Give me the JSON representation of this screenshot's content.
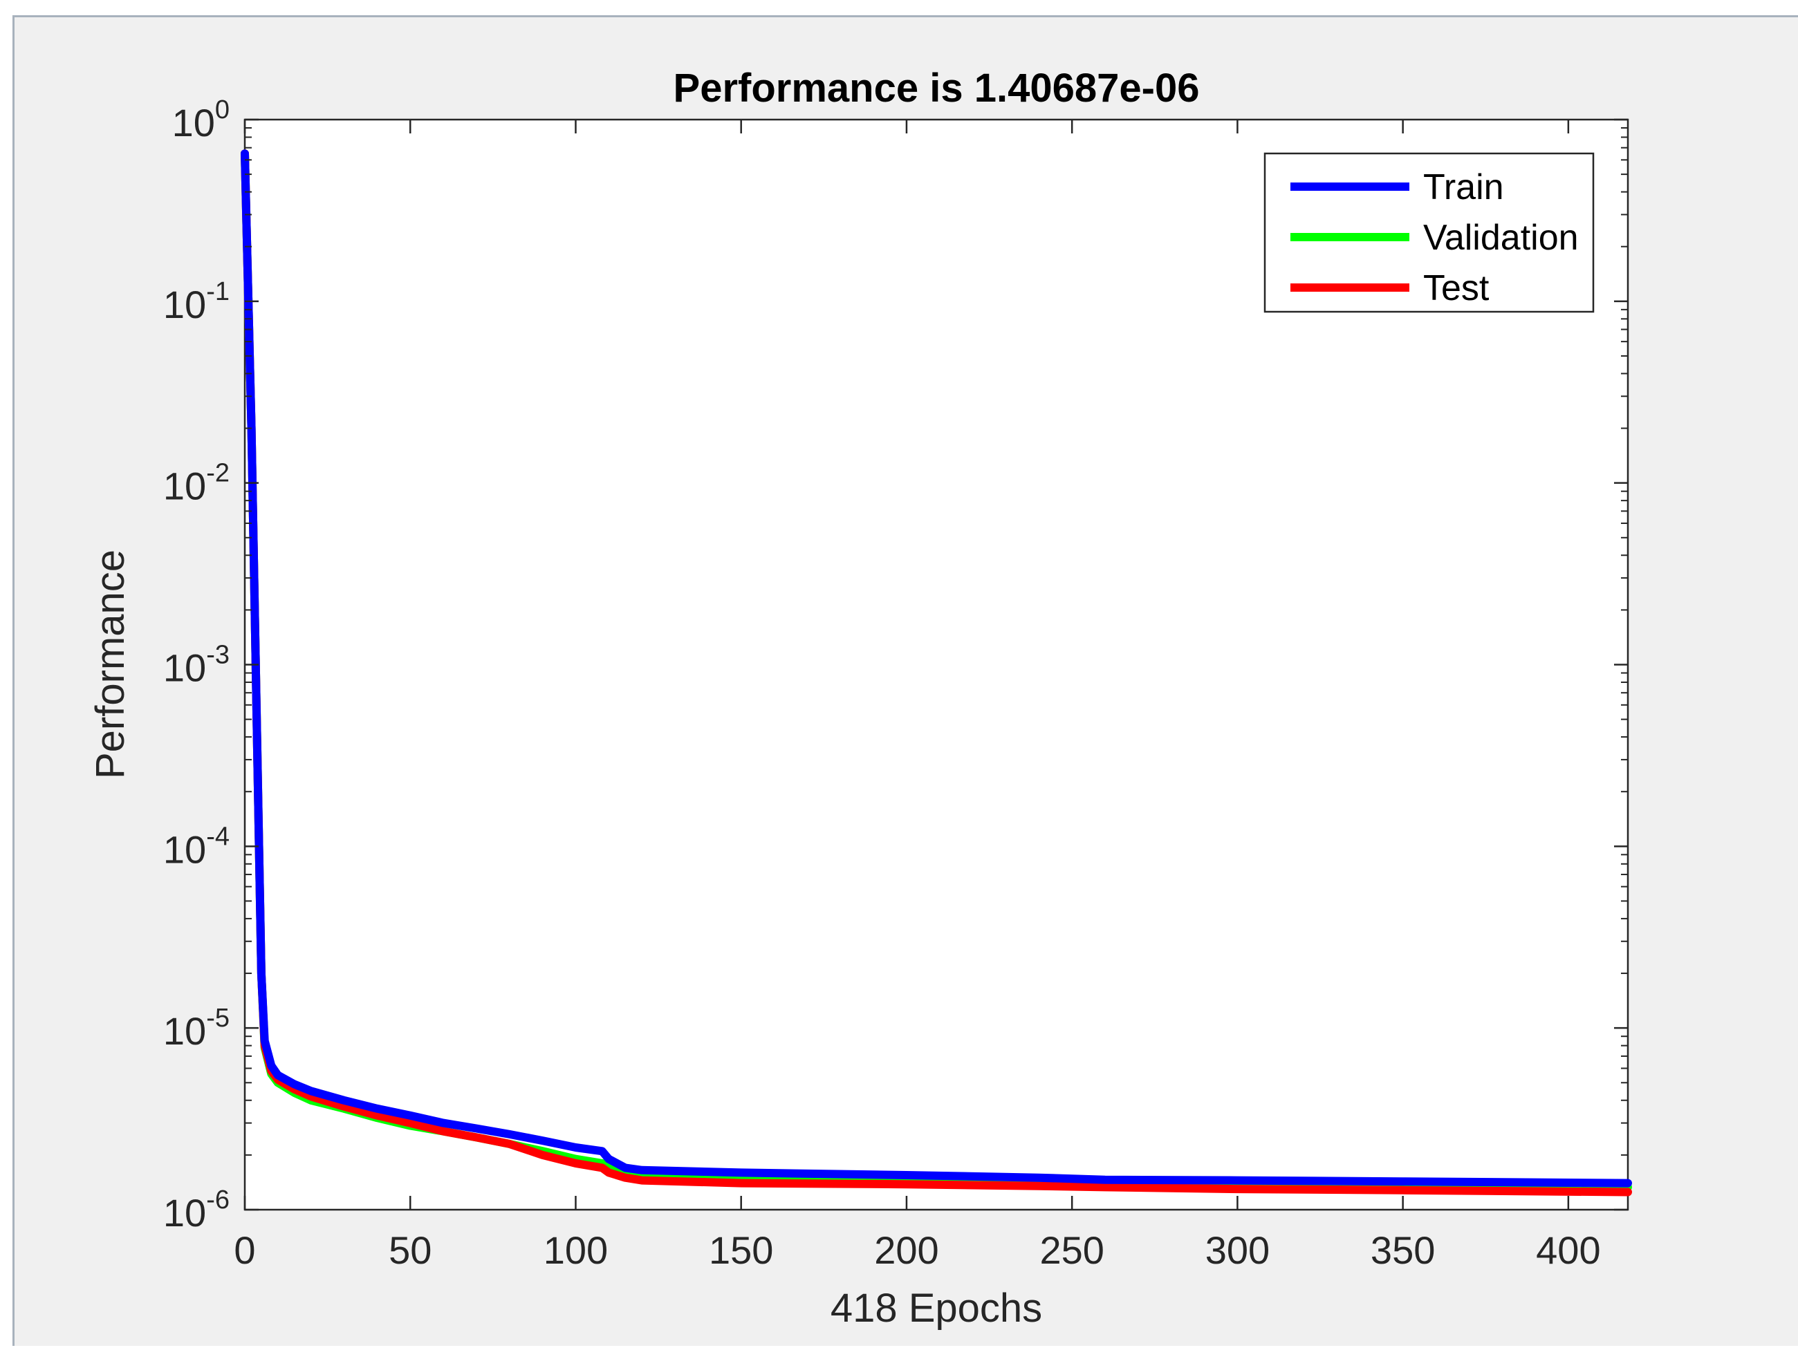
{
  "chart_data": {
    "type": "line",
    "title": "Performance is 1.40687e-06",
    "xlabel": "418 Epochs",
    "ylabel": "Performance",
    "xlim": [
      0,
      418
    ],
    "ylim": [
      1e-06,
      1
    ],
    "yscale": "log",
    "grid": false,
    "legend_position": "top-right",
    "x_ticks": [
      0,
      50,
      100,
      150,
      200,
      250,
      300,
      350,
      400
    ],
    "y_ticks": [
      {
        "base": "10",
        "exp": "0",
        "value": 1
      },
      {
        "base": "10",
        "exp": "-1",
        "value": 0.1
      },
      {
        "base": "10",
        "exp": "-2",
        "value": 0.01
      },
      {
        "base": "10",
        "exp": "-3",
        "value": 0.001
      },
      {
        "base": "10",
        "exp": "-4",
        "value": 0.0001
      },
      {
        "base": "10",
        "exp": "-5",
        "value": 1e-05
      },
      {
        "base": "10",
        "exp": "-6",
        "value": 1e-06
      }
    ],
    "series": [
      {
        "name": "Train",
        "color": "#0000ff",
        "points": [
          [
            0,
            0.65
          ],
          [
            2,
            0.02
          ],
          [
            4,
            0.0002
          ],
          [
            5,
            2e-05
          ],
          [
            6,
            8.5e-06
          ],
          [
            8,
            6.2e-06
          ],
          [
            10,
            5.5e-06
          ],
          [
            15,
            4.9e-06
          ],
          [
            20,
            4.5e-06
          ],
          [
            30,
            4e-06
          ],
          [
            40,
            3.6e-06
          ],
          [
            50,
            3.3e-06
          ],
          [
            60,
            3e-06
          ],
          [
            70,
            2.8e-06
          ],
          [
            80,
            2.6e-06
          ],
          [
            90,
            2.4e-06
          ],
          [
            100,
            2.2e-06
          ],
          [
            108,
            2.1e-06
          ],
          [
            110,
            1.9e-06
          ],
          [
            115,
            1.7e-06
          ],
          [
            120,
            1.65e-06
          ],
          [
            150,
            1.6e-06
          ],
          [
            200,
            1.55e-06
          ],
          [
            240,
            1.5e-06
          ],
          [
            260,
            1.46e-06
          ],
          [
            300,
            1.45e-06
          ],
          [
            350,
            1.43e-06
          ],
          [
            418,
            1.4e-06
          ]
        ]
      },
      {
        "name": "Validation",
        "color": "#00ff00",
        "points": [
          [
            0,
            0.65
          ],
          [
            2,
            0.02
          ],
          [
            4,
            0.0002
          ],
          [
            5,
            2e-05
          ],
          [
            6,
            7.8e-06
          ],
          [
            8,
            5.6e-06
          ],
          [
            10,
            5e-06
          ],
          [
            15,
            4.4e-06
          ],
          [
            20,
            4e-06
          ],
          [
            30,
            3.6e-06
          ],
          [
            40,
            3.2e-06
          ],
          [
            50,
            2.9e-06
          ],
          [
            60,
            2.7e-06
          ],
          [
            70,
            2.5e-06
          ],
          [
            80,
            2.3e-06
          ],
          [
            90,
            2.1e-06
          ],
          [
            100,
            1.9e-06
          ],
          [
            108,
            1.8e-06
          ],
          [
            110,
            1.7e-06
          ],
          [
            115,
            1.6e-06
          ],
          [
            120,
            1.55e-06
          ],
          [
            150,
            1.5e-06
          ],
          [
            200,
            1.45e-06
          ],
          [
            240,
            1.4e-06
          ],
          [
            260,
            1.38e-06
          ],
          [
            300,
            1.36e-06
          ],
          [
            350,
            1.35e-06
          ],
          [
            418,
            1.33e-06
          ]
        ]
      },
      {
        "name": "Test",
        "color": "#ff0000",
        "points": [
          [
            0,
            0.65
          ],
          [
            2,
            0.02
          ],
          [
            4,
            0.0002
          ],
          [
            5,
            2e-05
          ],
          [
            6,
            8e-06
          ],
          [
            8,
            5.8e-06
          ],
          [
            10,
            5.2e-06
          ],
          [
            15,
            4.6e-06
          ],
          [
            20,
            4.2e-06
          ],
          [
            30,
            3.7e-06
          ],
          [
            40,
            3.3e-06
          ],
          [
            50,
            3e-06
          ],
          [
            60,
            2.7e-06
          ],
          [
            70,
            2.5e-06
          ],
          [
            80,
            2.3e-06
          ],
          [
            90,
            2e-06
          ],
          [
            100,
            1.8e-06
          ],
          [
            108,
            1.7e-06
          ],
          [
            110,
            1.6e-06
          ],
          [
            115,
            1.5e-06
          ],
          [
            120,
            1.45e-06
          ],
          [
            150,
            1.4e-06
          ],
          [
            200,
            1.38e-06
          ],
          [
            240,
            1.35e-06
          ],
          [
            260,
            1.33e-06
          ],
          [
            300,
            1.3e-06
          ],
          [
            350,
            1.28e-06
          ],
          [
            418,
            1.25e-06
          ]
        ]
      }
    ]
  }
}
